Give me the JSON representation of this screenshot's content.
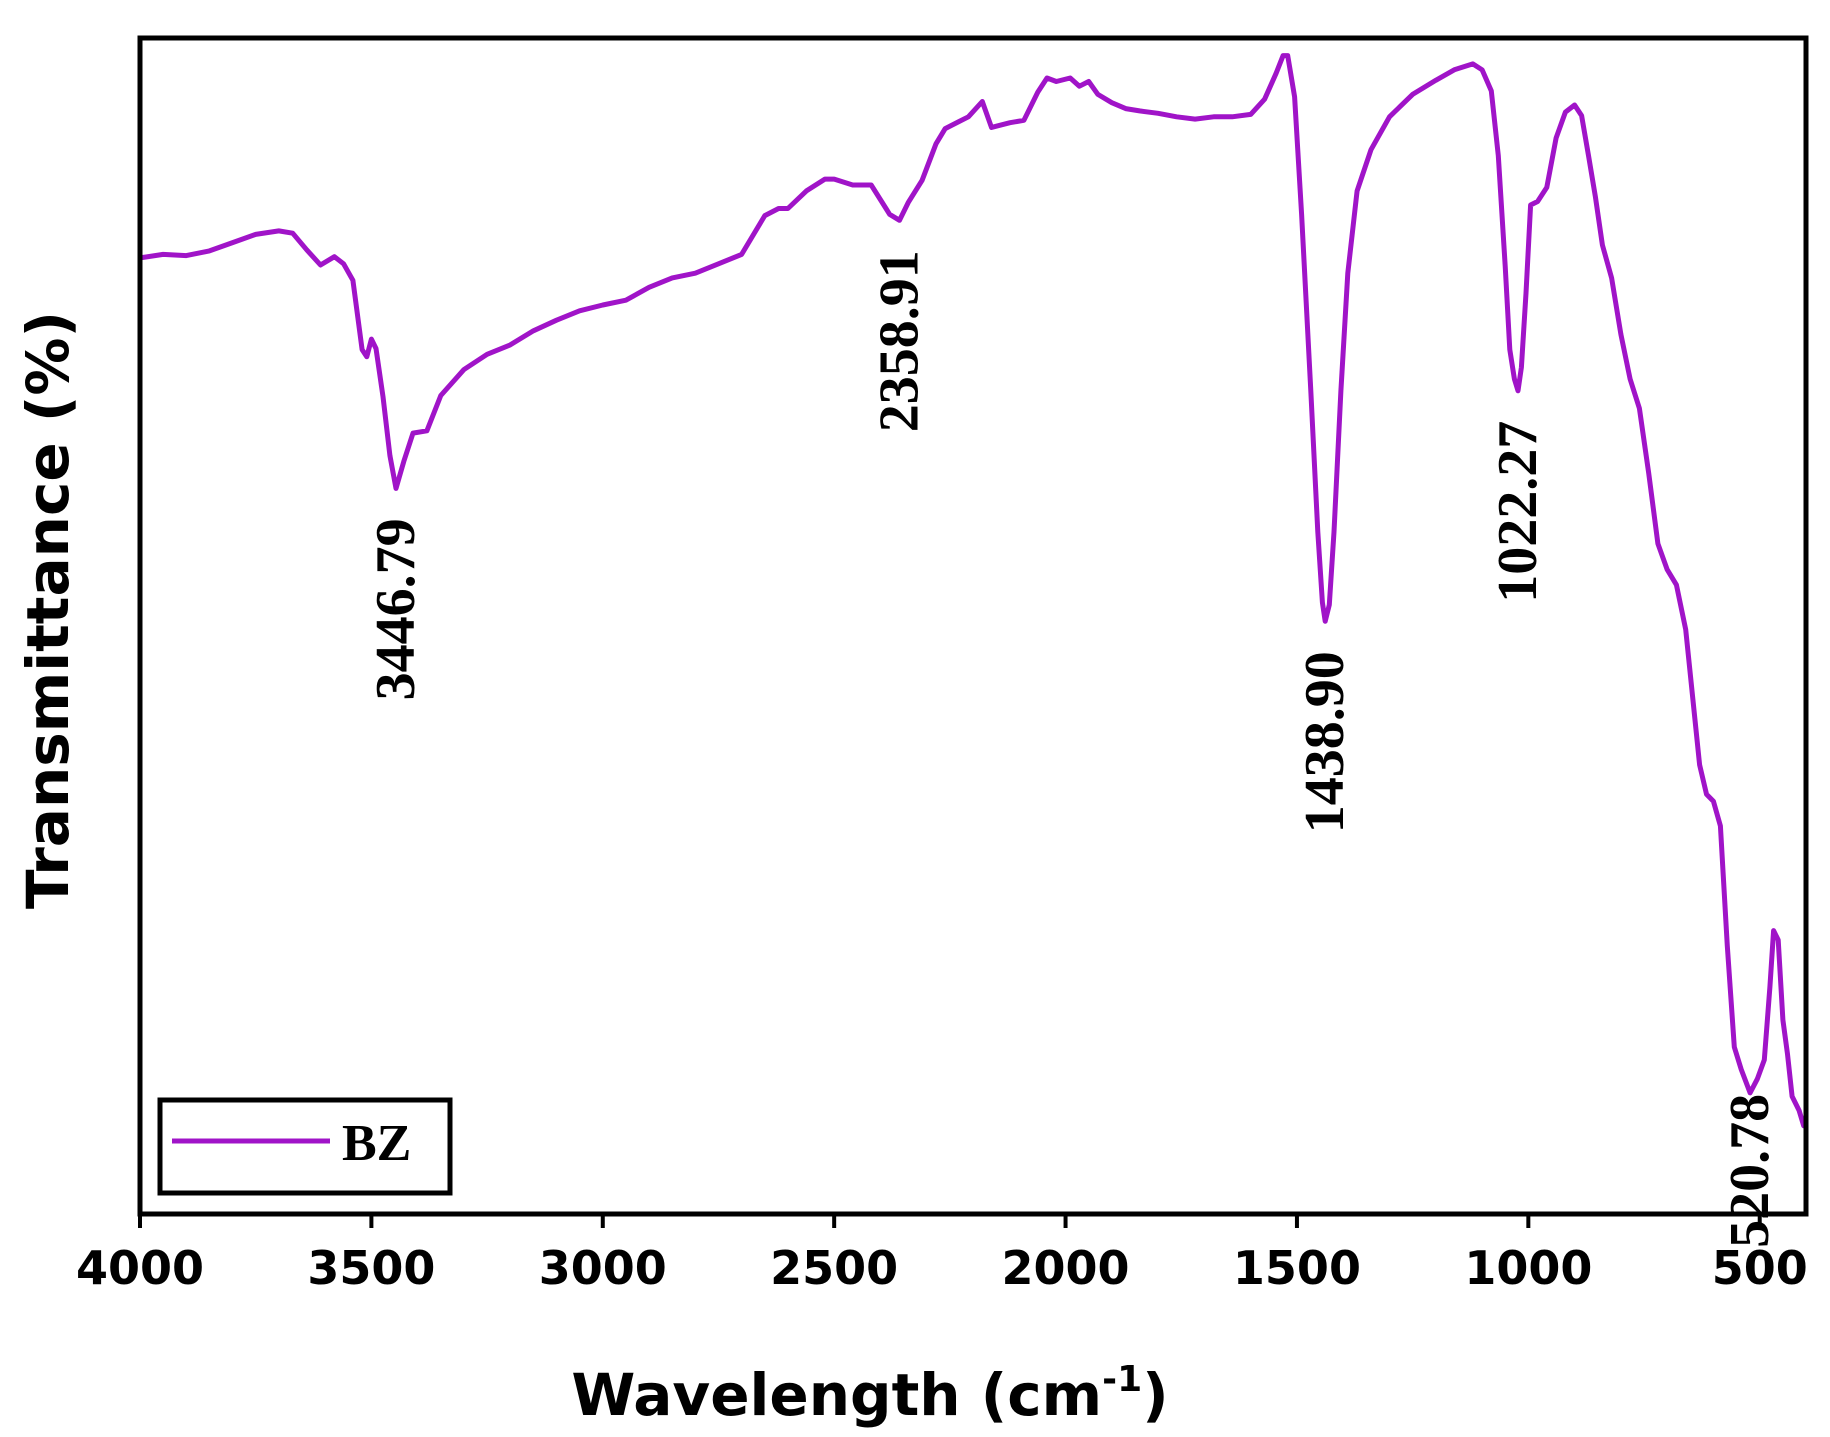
{
  "chart_data": {
    "type": "line",
    "title": "",
    "xlabel": "Wavelength (cm",
    "xlabel_sup": "-1",
    "xlabel_close": ")",
    "ylabel": "Transmittance (%)",
    "xlim": [
      4000,
      400
    ],
    "ylim": [
      0,
      100
    ],
    "x_ticks": [
      4000,
      3500,
      3000,
      2500,
      2000,
      1500,
      1000,
      500
    ],
    "x_tick_labels": [
      "4000",
      "3500",
      "3000",
      "2500",
      "2000",
      "1500",
      "1000",
      "500"
    ],
    "y_ticks_shown": false,
    "grid": false,
    "legend": {
      "position": "bottom-left",
      "entries": [
        {
          "label": "BZ",
          "color": "#a014c8"
        }
      ]
    },
    "series": [
      {
        "name": "BZ",
        "color": "#a014c8",
        "x": [
          4000,
          3950,
          3900,
          3850,
          3800,
          3750,
          3700,
          3670,
          3640,
          3610,
          3580,
          3560,
          3540,
          3520,
          3510,
          3500,
          3490,
          3475,
          3460,
          3446.79,
          3430,
          3410,
          3380,
          3350,
          3300,
          3250,
          3200,
          3150,
          3100,
          3050,
          3000,
          2950,
          2900,
          2850,
          2800,
          2750,
          2700,
          2650,
          2620,
          2600,
          2560,
          2520,
          2500,
          2460,
          2420,
          2380,
          2358.91,
          2340,
          2310,
          2280,
          2260,
          2230,
          2210,
          2180,
          2160,
          2120,
          2090,
          2060,
          2040,
          2020,
          1990,
          1970,
          1950,
          1930,
          1900,
          1870,
          1840,
          1800,
          1760,
          1720,
          1680,
          1640,
          1600,
          1570,
          1545,
          1530,
          1520,
          1505,
          1490,
          1470,
          1455,
          1445,
          1438.9,
          1430,
          1420,
          1405,
          1390,
          1370,
          1340,
          1300,
          1250,
          1200,
          1160,
          1120,
          1100,
          1080,
          1065,
          1050,
          1040,
          1030,
          1022.27,
          1015,
          1005,
          995,
          980,
          960,
          940,
          920,
          900,
          885,
          870,
          855,
          840,
          820,
          800,
          780,
          760,
          740,
          720,
          700,
          680,
          660,
          645,
          630,
          615,
          600,
          585,
          570,
          555,
          540,
          520.78,
          505,
          490,
          478,
          470,
          460,
          450,
          440,
          430,
          415,
          405,
          400
        ],
        "values": [
          81.3,
          81.6,
          81.5,
          81.9,
          82.6,
          83.3,
          83.6,
          83.4,
          82.0,
          80.7,
          81.4,
          80.8,
          79.4,
          73.5,
          72.9,
          74.4,
          73.6,
          69.5,
          64.5,
          61.7,
          64.0,
          66.4,
          66.6,
          69.6,
          71.8,
          73.1,
          73.9,
          75.1,
          76.0,
          76.8,
          77.3,
          77.7,
          78.8,
          79.6,
          80.0,
          80.8,
          81.6,
          84.9,
          85.5,
          85.5,
          87.0,
          88.0,
          88.0,
          87.5,
          87.5,
          85.0,
          84.5,
          86.0,
          87.9,
          91.0,
          92.3,
          92.9,
          93.3,
          94.6,
          92.4,
          92.8,
          93.0,
          95.4,
          96.6,
          96.3,
          96.6,
          95.9,
          96.3,
          95.2,
          94.5,
          94.0,
          93.8,
          93.6,
          93.3,
          93.1,
          93.3,
          93.3,
          93.5,
          94.8,
          97.0,
          98.5,
          98.5,
          95.0,
          85.0,
          70.0,
          58.0,
          52.0,
          50.4,
          51.8,
          58.0,
          70.0,
          80.0,
          87.0,
          90.5,
          93.3,
          95.2,
          96.4,
          97.3,
          97.8,
          97.3,
          95.5,
          90.0,
          80.6,
          73.5,
          71.0,
          70.0,
          72.0,
          78.3,
          85.8,
          86.1,
          87.3,
          91.5,
          93.7,
          94.3,
          93.4,
          90.0,
          86.5,
          82.4,
          79.6,
          74.8,
          71.0,
          68.5,
          63.0,
          57.0,
          54.8,
          53.5,
          49.7,
          44.0,
          38.2,
          35.7,
          35.1,
          33.0,
          22.8,
          14.2,
          12.3,
          10.3,
          11.5,
          13.1,
          19.3,
          24.1,
          23.3,
          16.5,
          13.6,
          10.0,
          8.8,
          7.5,
          7.8
        ],
        "annotations": [
          {
            "x": 3446.79,
            "label": "3446.79"
          },
          {
            "x": 2358.91,
            "label": "2358.91"
          },
          {
            "x": 1438.9,
            "label": "1438.90"
          },
          {
            "x": 1022.27,
            "label": "1022.27"
          },
          {
            "x": 520.78,
            "label": "520.78"
          }
        ]
      }
    ]
  }
}
